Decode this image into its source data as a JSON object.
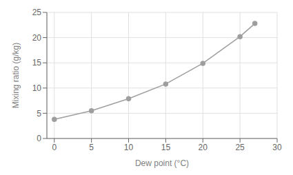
{
  "chart_data": {
    "type": "line",
    "xlabel": "Dew point (°C)",
    "ylabel": "Mixing ratio (g/kg)",
    "x": [
      0,
      5,
      10,
      15,
      20,
      25,
      27
    ],
    "values": [
      3.8,
      5.5,
      7.9,
      10.8,
      14.9,
      20.2,
      22.8
    ],
    "color": "#9e9e9e",
    "marker": "circle",
    "xlim": [
      -1,
      30
    ],
    "ylim": [
      0,
      25
    ],
    "xticks": [
      0,
      5,
      10,
      15,
      20,
      25,
      30
    ],
    "yticks": [
      0,
      5,
      10,
      15,
      20,
      25
    ],
    "grid": true
  }
}
